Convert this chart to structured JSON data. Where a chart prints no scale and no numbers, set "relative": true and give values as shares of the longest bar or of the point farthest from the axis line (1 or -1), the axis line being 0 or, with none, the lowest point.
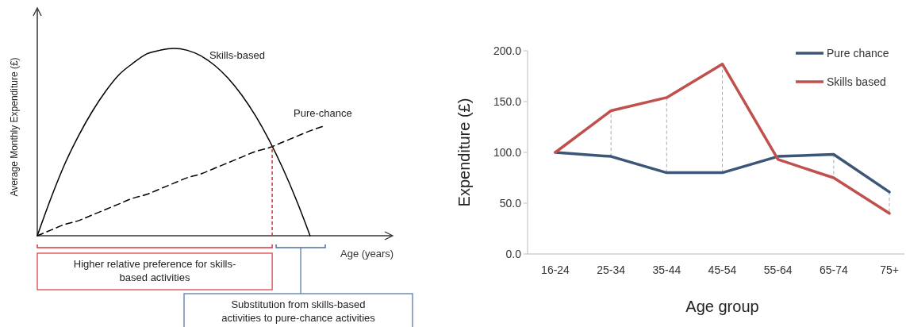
{
  "chart_data": [
    {
      "type": "line",
      "relative": true,
      "xlabel": "Age (years)",
      "ylabel": "Average Monthly Expenditure (£)",
      "categories": [
        null,
        null,
        null,
        null,
        null,
        null,
        null,
        null,
        null,
        null,
        null,
        null,
        null,
        null,
        null,
        null,
        null,
        null,
        null,
        null,
        null,
        null,
        null,
        null,
        null,
        null,
        null
      ],
      "series": [
        {
          "name": "Skills-based",
          "color": "#000000",
          "line_style": "solid",
          "values": [
            0,
            0.2,
            0.38,
            0.53,
            0.66,
            0.77,
            0.86,
            0.92,
            0.97,
            0.99,
            1,
            0.99,
            0.96,
            0.91,
            0.84,
            0.75,
            0.64,
            0.51,
            0.36,
            0.19,
            0,
            null,
            null,
            null,
            null,
            null,
            null
          ]
        },
        {
          "name": "Pure-chance",
          "color": "#000000",
          "line_style": "dashed",
          "values": [
            0,
            0.03,
            0.06,
            0.08,
            0.11,
            0.14,
            0.17,
            0.2,
            0.22,
            0.25,
            0.28,
            0.31,
            0.33,
            0.36,
            0.39,
            0.42,
            0.45,
            0.47,
            0.5,
            0.53,
            0.56,
            0.585,
            null,
            null,
            null,
            null,
            null
          ]
        }
      ],
      "annotations": [
        "Higher relative preference for skills-\nbased activities",
        "Substitution from skills-based\nactivities to pure-chance activities"
      ]
    },
    {
      "type": "line",
      "xlabel": "Age group",
      "ylabel": "Expenditure (£)",
      "legend": "top right",
      "grid": false,
      "categories": [
        "16-24",
        "25-34",
        "35-44",
        "45-54",
        "55-64",
        "65-74",
        "75+"
      ],
      "ylim": [
        0,
        200
      ],
      "yticks": [
        {
          "value": 0,
          "label": "0.0"
        },
        {
          "value": 50,
          "label": "50.0"
        },
        {
          "value": 100,
          "label": "100.0"
        },
        {
          "value": 150,
          "label": "150.0"
        },
        {
          "value": 200,
          "label": "200.0"
        }
      ],
      "series": [
        {
          "name": "Pure chance",
          "color": "#3b5677",
          "values": [
            100,
            96,
            80,
            80,
            96,
            98,
            61
          ]
        },
        {
          "name": "Skills based",
          "color": "#c0504d",
          "values": [
            100,
            141,
            154,
            187,
            93,
            75,
            40
          ]
        }
      ]
    }
  ]
}
